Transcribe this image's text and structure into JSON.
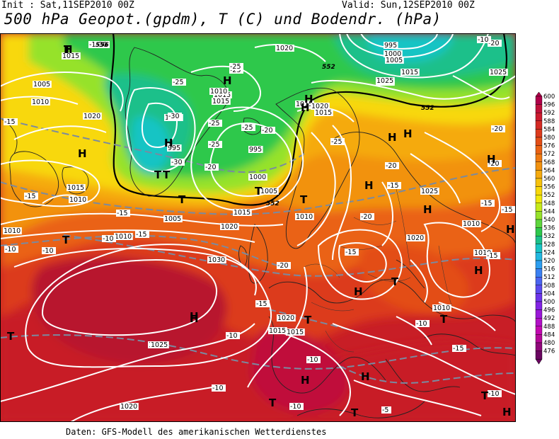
{
  "header": {
    "init": "Init : Sat,11SEP2010 00Z",
    "valid": "Valid: Sun,12SEP2010 00Z",
    "title": "500 hPa Geopot.(gpdm), T (C) und Bodendr. (hPa)"
  },
  "footer": "Daten: GFS-Modell des amerikanischen Wetterdienstes",
  "legend_levels": [
    "600",
    "596",
    "592",
    "588",
    "584",
    "580",
    "576",
    "572",
    "568",
    "564",
    "560",
    "556",
    "552",
    "548",
    "544",
    "540",
    "536",
    "532",
    "528",
    "524",
    "520",
    "516",
    "512",
    "508",
    "504",
    "500",
    "496",
    "492",
    "488",
    "484",
    "480",
    "476"
  ],
  "legend_colors": [
    "#b0004a",
    "#c0103a",
    "#cc1a2e",
    "#d42a24",
    "#dc3a1c",
    "#e34e16",
    "#ea6214",
    "#ef7a12",
    "#f29210",
    "#f5aa0e",
    "#f7c20c",
    "#f8d80a",
    "#f0e80c",
    "#c6ea1a",
    "#96e22a",
    "#5ed63c",
    "#2ec84c",
    "#1cc08a",
    "#18c4c4",
    "#22b8e0",
    "#2c9ef0",
    "#3a80f2",
    "#4a64f0",
    "#5a4aee",
    "#6c34ea",
    "#8224e4",
    "#9a18d8",
    "#b210c6",
    "#c208b0",
    "#b40898",
    "#90087a",
    "#6a0660"
  ],
  "pressure_labels": [
    {
      "t": "1015"
    },
    {
      "t": "1005"
    },
    {
      "t": "1010"
    },
    {
      "t": "1020"
    },
    {
      "t": "1015"
    },
    {
      "t": "1010"
    },
    {
      "t": "1010"
    },
    {
      "t": "1010"
    },
    {
      "t": "1005"
    },
    {
      "t": "1000"
    },
    {
      "t": "995"
    },
    {
      "t": "1015"
    },
    {
      "t": "1010"
    },
    {
      "t": "1015"
    },
    {
      "t": "1020"
    },
    {
      "t": "1015"
    },
    {
      "t": "995"
    },
    {
      "t": "1000"
    },
    {
      "t": "1005"
    },
    {
      "t": "1015"
    },
    {
      "t": "1010"
    },
    {
      "t": "1020"
    },
    {
      "t": "1030"
    },
    {
      "t": "1025"
    },
    {
      "t": "1020"
    },
    {
      "t": "1015"
    },
    {
      "t": "1025"
    },
    {
      "t": "1020"
    },
    {
      "t": "1015"
    },
    {
      "t": "1015"
    },
    {
      "t": "1020"
    },
    {
      "t": "1010"
    },
    {
      "t": "1010"
    },
    {
      "t": "1010"
    },
    {
      "t": "1025"
    },
    {
      "t": "1020"
    },
    {
      "t": "1025"
    },
    {
      "t": "995"
    },
    {
      "t": "1000"
    },
    {
      "t": "1005"
    },
    {
      "t": "1015"
    },
    {
      "t": "1020"
    },
    {
      "t": "1025"
    }
  ],
  "temp_labels": [
    {
      "t": "-15"
    },
    {
      "t": "-30"
    },
    {
      "t": "-25"
    },
    {
      "t": "-25"
    },
    {
      "t": "-30"
    },
    {
      "t": "-25"
    },
    {
      "t": "-20"
    },
    {
      "t": "-25"
    },
    {
      "t": "-25"
    },
    {
      "t": "-20"
    },
    {
      "t": "-20"
    },
    {
      "t": "-15"
    },
    {
      "t": "-15"
    },
    {
      "t": "-15"
    },
    {
      "t": "-15"
    },
    {
      "t": "-10"
    },
    {
      "t": "-10"
    },
    {
      "t": "-10"
    },
    {
      "t": "-15"
    },
    {
      "t": "-20"
    },
    {
      "t": "-15"
    },
    {
      "t": "-15"
    },
    {
      "t": "-10"
    },
    {
      "t": "-10"
    },
    {
      "t": "-10"
    },
    {
      "t": "-10"
    },
    {
      "t": "-10"
    },
    {
      "t": "-5"
    },
    {
      "t": "-15"
    },
    {
      "t": "-20"
    },
    {
      "t": "-20"
    },
    {
      "t": "-15"
    },
    {
      "t": "-15"
    },
    {
      "t": "-10"
    },
    {
      "t": "-15"
    },
    {
      "t": "-25"
    },
    {
      "t": "-30"
    },
    {
      "t": "-20"
    },
    {
      "t": "-25"
    },
    {
      "t": "-20"
    },
    {
      "t": "-10"
    }
  ],
  "geo_labels": [
    {
      "t": "556"
    },
    {
      "t": "552"
    },
    {
      "t": "552"
    },
    {
      "t": "552"
    }
  ],
  "high_marks": [
    "H",
    "H",
    "H",
    "H",
    "H",
    "H",
    "H",
    "H",
    "H",
    "H",
    "H",
    "H",
    "H",
    "H",
    "H",
    "H",
    "H",
    "H",
    "H",
    "H"
  ],
  "low_marks": [
    "T",
    "T",
    "T",
    "T",
    "T",
    "T",
    "T",
    "T",
    "T",
    "T",
    "T",
    "T",
    "T",
    "T"
  ]
}
